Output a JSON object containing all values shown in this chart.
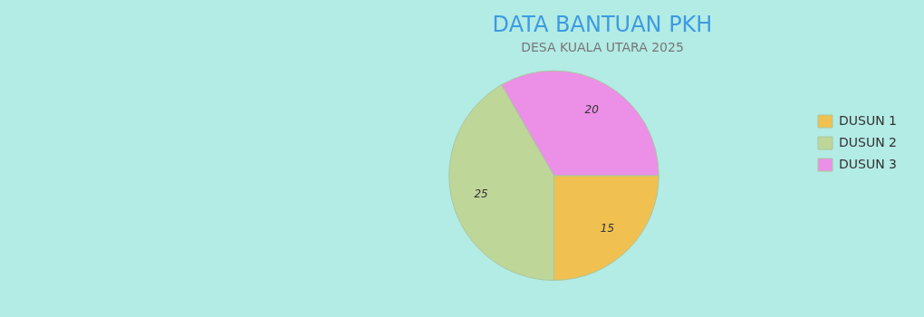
{
  "chart_data": {
    "type": "pie",
    "title": "DATA BANTUAN PKH",
    "subtitle": "DESA KUALA UTARA 2025",
    "categories": [
      "DUSUN 1",
      "DUSUN 2",
      "DUSUN 3"
    ],
    "values": [
      15,
      25,
      20
    ],
    "colors": [
      "#f0c050",
      "#bfd699",
      "#ec8fe6"
    ],
    "data_labels": true,
    "legend": "right"
  }
}
